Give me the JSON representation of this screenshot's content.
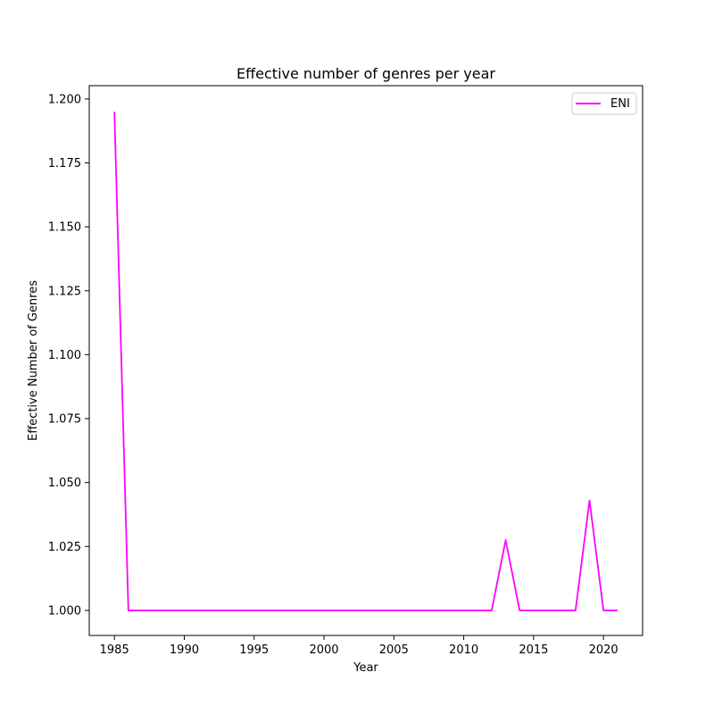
{
  "chart_data": {
    "type": "line",
    "title": "Effective number of genres per year",
    "xlabel": "Year",
    "ylabel": "Effective Number of Genres",
    "xlim": [
      1983.2,
      2022.8
    ],
    "ylim": [
      0.9902,
      1.2052
    ],
    "xticks": [
      1985,
      1990,
      1995,
      2000,
      2005,
      2010,
      2015,
      2020
    ],
    "yticks": [
      1.0,
      1.025,
      1.05,
      1.075,
      1.1,
      1.125,
      1.15,
      1.175,
      1.2
    ],
    "ytick_labels": [
      "1.000",
      "1.025",
      "1.050",
      "1.075",
      "1.100",
      "1.125",
      "1.150",
      "1.175",
      "1.200"
    ],
    "grid": false,
    "legend_position": "upper right",
    "series": [
      {
        "name": "ENI",
        "color": "#ff00ff",
        "x": [
          1985,
          1986,
          1987,
          1988,
          1989,
          1990,
          1991,
          1992,
          1993,
          1994,
          1995,
          1996,
          1997,
          1998,
          1999,
          2000,
          2001,
          2002,
          2003,
          2004,
          2005,
          2006,
          2007,
          2008,
          2009,
          2010,
          2011,
          2012,
          2013,
          2014,
          2015,
          2016,
          2017,
          2018,
          2019,
          2020,
          2021
        ],
        "y": [
          1.195,
          1.0,
          1.0,
          1.0,
          1.0,
          1.0,
          1.0,
          1.0,
          1.0,
          1.0,
          1.0,
          1.0,
          1.0,
          1.0,
          1.0,
          1.0,
          1.0,
          1.0,
          1.0,
          1.0,
          1.0,
          1.0,
          1.0,
          1.0,
          1.0,
          1.0,
          1.0,
          1.0,
          1.0275,
          1.0,
          1.0,
          1.0,
          1.0,
          1.0,
          1.043,
          1.0,
          1.0
        ]
      }
    ]
  }
}
